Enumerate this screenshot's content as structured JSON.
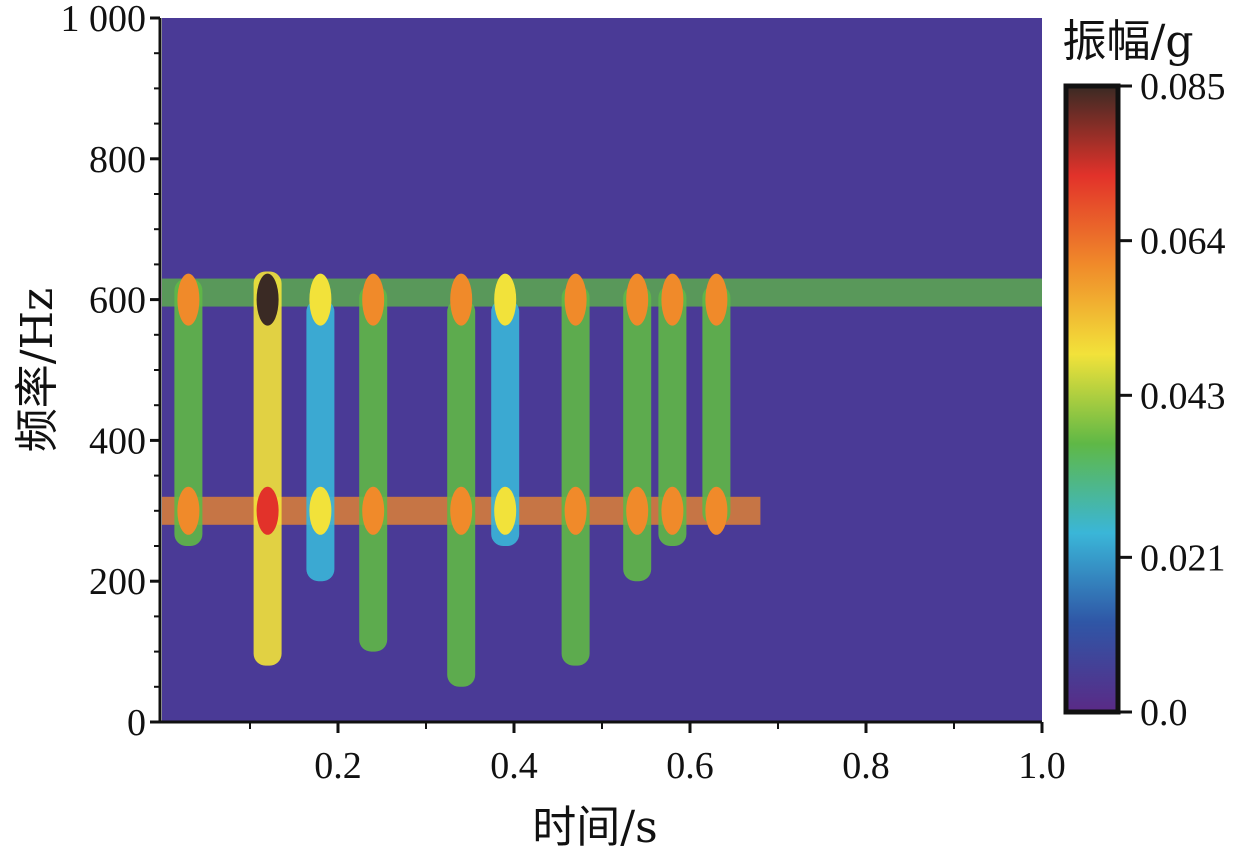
{
  "chart_data": {
    "type": "heatmap",
    "title": "",
    "xlabel": "时间/s",
    "ylabel": "频率/Hz",
    "xlim": [
      0.0,
      1.0
    ],
    "ylim": [
      0,
      1000
    ],
    "x_ticks": [
      0.2,
      0.4,
      0.6,
      0.8,
      1.0
    ],
    "x_tick_labels": [
      "0.2",
      "0.4",
      "0.6",
      "0.8",
      "1.0"
    ],
    "y_ticks": [
      0,
      200,
      400,
      600,
      800,
      1000
    ],
    "y_tick_labels": [
      "0",
      "200",
      "400",
      "600",
      "800",
      "1 000"
    ],
    "grid": false,
    "colorbar": {
      "title": "振幅/g",
      "range": [
        0.0,
        0.085
      ],
      "ticks": [
        0.0,
        0.021,
        0.043,
        0.064,
        0.085
      ],
      "tick_labels": [
        "0.0",
        "0.021",
        "0.043",
        "0.064",
        "0.085"
      ],
      "colors": [
        "#5a2a86",
        "#2f56a6",
        "#3ab6d8",
        "#5fb846",
        "#f2e23a",
        "#f08a2a",
        "#e2322a",
        "#3a2a24"
      ]
    },
    "bands": [
      {
        "t": 0.03,
        "f_low": 250,
        "f_high": 630,
        "amp": 0.062
      },
      {
        "t": 0.12,
        "f_low": 80,
        "f_high": 640,
        "amp": 0.08
      },
      {
        "t": 0.18,
        "f_low": 200,
        "f_high": 600,
        "amp": 0.05
      },
      {
        "t": 0.24,
        "f_low": 100,
        "f_high": 620,
        "amp": 0.065
      },
      {
        "t": 0.34,
        "f_low": 50,
        "f_high": 600,
        "amp": 0.062
      },
      {
        "t": 0.39,
        "f_low": 250,
        "f_high": 600,
        "amp": 0.045
      },
      {
        "t": 0.47,
        "f_low": 80,
        "f_high": 620,
        "amp": 0.065
      },
      {
        "t": 0.54,
        "f_low": 200,
        "f_high": 620,
        "amp": 0.06
      },
      {
        "t": 0.58,
        "f_low": 250,
        "f_high": 620,
        "amp": 0.06
      },
      {
        "t": 0.63,
        "f_low": 280,
        "f_high": 620,
        "amp": 0.058
      }
    ],
    "ridges": [
      {
        "f": 610,
        "t_start": 0.0,
        "t_end": 1.0,
        "amp": 0.04
      },
      {
        "f": 300,
        "t_start": 0.0,
        "t_end": 0.68,
        "amp": 0.055
      }
    ]
  }
}
